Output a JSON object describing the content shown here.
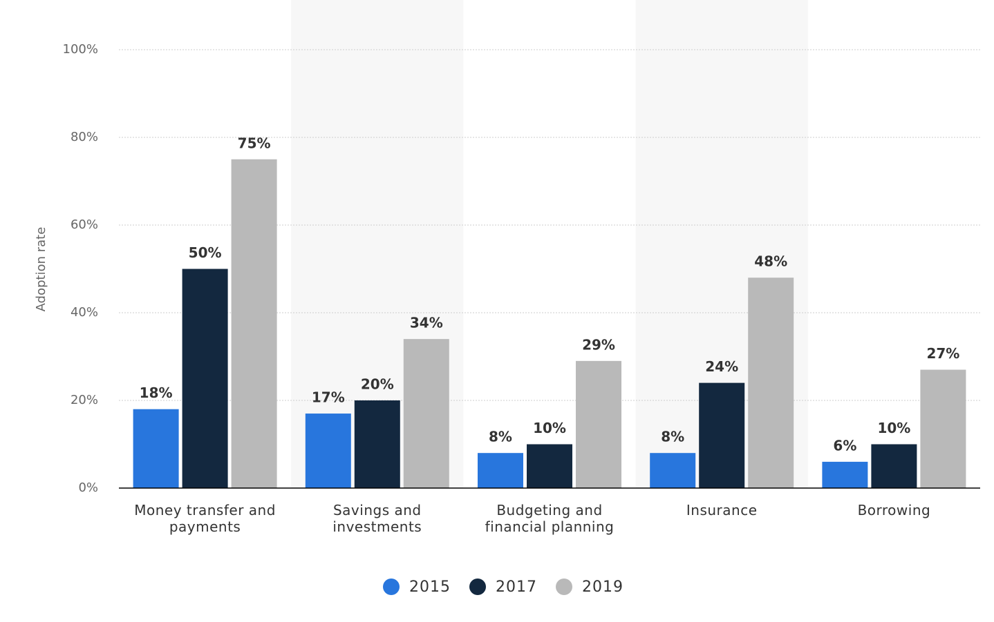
{
  "chart_data": {
    "type": "bar",
    "y_axis_label": "Adoption rate",
    "categories": [
      "Money transfer and payments",
      "Savings and investments",
      "Budgeting and financial planning",
      "Insurance",
      "Borrowing"
    ],
    "series": [
      {
        "name": "2015",
        "color": "#2876dd",
        "values": [
          18,
          17,
          8,
          8,
          6
        ],
        "value_labels": [
          "18%",
          "17%",
          "8%",
          "8%",
          "6%"
        ]
      },
      {
        "name": "2017",
        "color": "#13283f",
        "values": [
          50,
          20,
          10,
          24,
          10
        ],
        "value_labels": [
          "50%",
          "20%",
          "10%",
          "24%",
          "10%"
        ]
      },
      {
        "name": "2019",
        "color": "#b9b9b9",
        "values": [
          75,
          34,
          29,
          48,
          27
        ],
        "value_labels": [
          "75%",
          "34%",
          "29%",
          "48%",
          "27%"
        ]
      }
    ],
    "ylim": [
      0,
      100
    ],
    "yticks": [
      {
        "value": 0,
        "label": "0%"
      },
      {
        "value": 20,
        "label": "20%"
      },
      {
        "value": 40,
        "label": "40%"
      },
      {
        "value": 60,
        "label": "60%"
      },
      {
        "value": 80,
        "label": "80%"
      },
      {
        "value": 100,
        "label": "100%"
      }
    ],
    "grid": true,
    "legend": "bottom"
  }
}
